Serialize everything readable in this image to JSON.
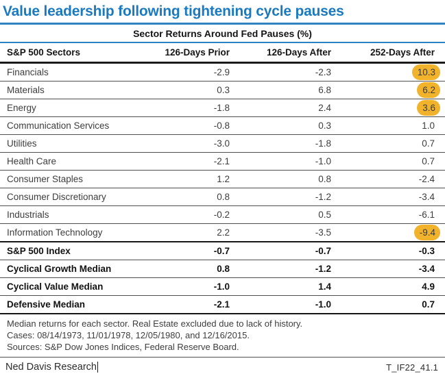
{
  "title": "Value leadership following tightening cycle pauses",
  "table": {
    "subtitle": "Sector Returns Around Fed Pauses (%)",
    "columns": [
      "S&P 500 Sectors",
      "126-Days Prior",
      "126-Days After",
      "252-Days After"
    ],
    "rows": [
      {
        "sector": "Financials",
        "prior126": "-2.9",
        "after126": "-2.3",
        "after252": "10.3",
        "bold": false,
        "highlight": true,
        "section_end": false
      },
      {
        "sector": "Materials",
        "prior126": "0.3",
        "after126": "6.8",
        "after252": "6.2",
        "bold": false,
        "highlight": true,
        "section_end": false
      },
      {
        "sector": "Energy",
        "prior126": "-1.8",
        "after126": "2.4",
        "after252": "3.6",
        "bold": false,
        "highlight": true,
        "section_end": false
      },
      {
        "sector": "Communication Services",
        "prior126": "-0.8",
        "after126": "0.3",
        "after252": "1.0",
        "bold": false,
        "highlight": false,
        "section_end": false
      },
      {
        "sector": "Utilities",
        "prior126": "-3.0",
        "after126": "-1.8",
        "after252": "0.7",
        "bold": false,
        "highlight": false,
        "section_end": false
      },
      {
        "sector": "Health Care",
        "prior126": "-2.1",
        "after126": "-1.0",
        "after252": "0.7",
        "bold": false,
        "highlight": false,
        "section_end": false
      },
      {
        "sector": "Consumer Staples",
        "prior126": "1.2",
        "after126": "0.8",
        "after252": "-2.4",
        "bold": false,
        "highlight": false,
        "section_end": false
      },
      {
        "sector": "Consumer Discretionary",
        "prior126": "0.8",
        "after126": "-1.2",
        "after252": "-3.4",
        "bold": false,
        "highlight": false,
        "section_end": false
      },
      {
        "sector": "Industrials",
        "prior126": "-0.2",
        "after126": "0.5",
        "after252": "-6.1",
        "bold": false,
        "highlight": false,
        "section_end": false
      },
      {
        "sector": "Information Technology",
        "prior126": "2.2",
        "after126": "-3.5",
        "after252": "-9.4",
        "bold": false,
        "highlight": true,
        "section_end": true
      },
      {
        "sector": "S&P 500 Index",
        "prior126": "-0.7",
        "after126": "-0.7",
        "after252": "-0.3",
        "bold": true,
        "highlight": false,
        "section_end": false
      },
      {
        "sector": "Cyclical Growth Median",
        "prior126": "0.8",
        "after126": "-1.2",
        "after252": "-3.4",
        "bold": true,
        "highlight": false,
        "section_end": false
      },
      {
        "sector": "Cyclical Value Median",
        "prior126": "-1.0",
        "after126": "1.4",
        "after252": "4.9",
        "bold": true,
        "highlight": false,
        "section_end": false
      },
      {
        "sector": "Defensive Median",
        "prior126": "-2.1",
        "after126": "-1.0",
        "after252": "0.7",
        "bold": true,
        "highlight": false,
        "section_end": false
      }
    ]
  },
  "footnotes": [
    "Median returns for each sector. Real Estate excluded due to lack of history.",
    "Cases: 08/14/1973, 11/01/1978, 12/05/1980, and 12/16/2015.",
    "Sources: S&P Dow Jones Indices, Federal Reserve Board."
  ],
  "footer": {
    "brand": "Ned Davis Research",
    "chart_id": "T_IF22_41.1"
  },
  "colors": {
    "title_blue": "#1b7abf",
    "rule_blue": "#2e81c2",
    "highlight_yellow": "#f1b32c",
    "body_text": "#3d3d3d",
    "bold_text": "#111111"
  },
  "chart_data": {
    "type": "table",
    "title": "Value leadership following tightening cycle pauses",
    "subtitle": "Sector Returns Around Fed Pauses (%)",
    "columns": [
      "S&P 500 Sectors",
      "126-Days Prior",
      "126-Days After",
      "252-Days After"
    ],
    "rows": [
      [
        "Financials",
        -2.9,
        -2.3,
        10.3
      ],
      [
        "Materials",
        0.3,
        6.8,
        6.2
      ],
      [
        "Energy",
        -1.8,
        2.4,
        3.6
      ],
      [
        "Communication Services",
        -0.8,
        0.3,
        1.0
      ],
      [
        "Utilities",
        -3.0,
        -1.8,
        0.7
      ],
      [
        "Health Care",
        -2.1,
        -1.0,
        0.7
      ],
      [
        "Consumer Staples",
        1.2,
        0.8,
        -2.4
      ],
      [
        "Consumer Discretionary",
        0.8,
        -1.2,
        -3.4
      ],
      [
        "Industrials",
        -0.2,
        0.5,
        -6.1
      ],
      [
        "Information Technology",
        2.2,
        -3.5,
        -9.4
      ],
      [
        "S&P 500 Index",
        -0.7,
        -0.7,
        -0.3
      ],
      [
        "Cyclical Growth Median",
        0.8,
        -1.2,
        -3.4
      ],
      [
        "Cyclical Value Median",
        -1.0,
        1.4,
        4.9
      ],
      [
        "Defensive Median",
        -2.1,
        -1.0,
        0.7
      ]
    ],
    "highlighted_cells": [
      [
        "Financials",
        "252-Days After"
      ],
      [
        "Materials",
        "252-Days After"
      ],
      [
        "Energy",
        "252-Days After"
      ],
      [
        "Information Technology",
        "252-Days After"
      ]
    ],
    "bold_rows": [
      "S&P 500 Index",
      "Cyclical Growth Median",
      "Cyclical Value Median",
      "Defensive Median"
    ]
  }
}
